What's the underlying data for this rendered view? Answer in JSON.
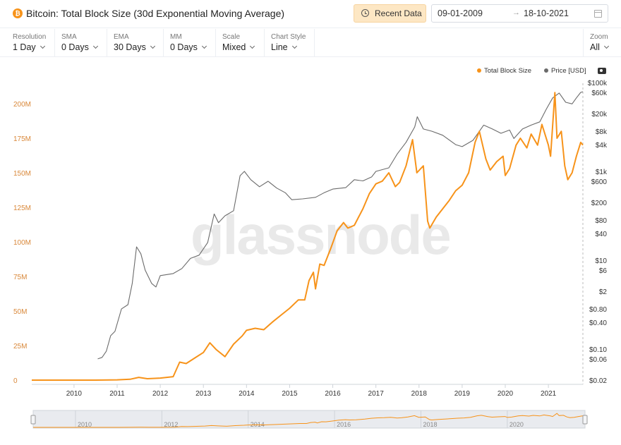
{
  "header": {
    "title": "Bitcoin: Total Block Size (30d Exponential Moving Average)",
    "recent_button": "Recent Data",
    "date_from": "09-01-2009",
    "date_to": "18-10-2021"
  },
  "controls": {
    "resolution": {
      "label": "Resolution",
      "value": "1 Day"
    },
    "sma": {
      "label": "SMA",
      "value": "0 Days"
    },
    "ema": {
      "label": "EMA",
      "value": "30 Days"
    },
    "mm": {
      "label": "MM",
      "value": "0 Days"
    },
    "scale": {
      "label": "Scale",
      "value": "Mixed"
    },
    "chart_style": {
      "label": "Chart Style",
      "value": "Line"
    },
    "zoom": {
      "label": "Zoom",
      "value": "All"
    }
  },
  "legend": {
    "block_size": "Total Block Size",
    "price": "Price [USD]"
  },
  "watermark": "glassnode",
  "chart_data": {
    "type": "line",
    "x_ticks": [
      "2010",
      "2011",
      "2012",
      "2013",
      "2014",
      "2015",
      "2016",
      "2017",
      "2018",
      "2019",
      "2020",
      "2021"
    ],
    "left_axis": {
      "ticks": [
        "0",
        "25M",
        "50M",
        "75M",
        "100M",
        "125M",
        "150M",
        "175M",
        "200M"
      ],
      "range": [
        0,
        200000000
      ]
    },
    "right_axis": {
      "scale": "log",
      "ticks": [
        "$0.02",
        "$0.06",
        "$0.10",
        "$0.40",
        "$0.80",
        "$2",
        "$6",
        "$10",
        "$40",
        "$80",
        "$200",
        "$600",
        "$1k",
        "$4k",
        "$8k",
        "$20k",
        "$60k",
        "$100k"
      ]
    },
    "navigator_ticks": [
      "2010",
      "2012",
      "2014",
      "2016",
      "2018",
      "2020"
    ],
    "colors": {
      "block_size": "#f7931a",
      "price": "#6b6b6b",
      "axis_left": "#d9883a"
    },
    "series": [
      {
        "name": "Total Block Size",
        "axis": "left",
        "points": [
          [
            2009.02,
            0.0
          ],
          [
            2010.0,
            0.0
          ],
          [
            2010.5,
            0.0
          ],
          [
            2011.0,
            0.2
          ],
          [
            2011.3,
            0.6
          ],
          [
            2011.5,
            2.0
          ],
          [
            2011.7,
            1.0
          ],
          [
            2012.0,
            1.5
          ],
          [
            2012.3,
            2.5
          ],
          [
            2012.45,
            13.0
          ],
          [
            2012.6,
            12.0
          ],
          [
            2012.8,
            16.0
          ],
          [
            2013.0,
            20.0
          ],
          [
            2013.15,
            27.0
          ],
          [
            2013.3,
            22.0
          ],
          [
            2013.5,
            17.0
          ],
          [
            2013.7,
            26.0
          ],
          [
            2013.9,
            32.0
          ],
          [
            2014.0,
            36.0
          ],
          [
            2014.2,
            37.5
          ],
          [
            2014.4,
            36.5
          ],
          [
            2014.6,
            42.0
          ],
          [
            2014.8,
            47.0
          ],
          [
            2015.0,
            52.0
          ],
          [
            2015.2,
            58.0
          ],
          [
            2015.35,
            58.0
          ],
          [
            2015.45,
            72.0
          ],
          [
            2015.55,
            78.0
          ],
          [
            2015.6,
            66.0
          ],
          [
            2015.7,
            84.0
          ],
          [
            2015.8,
            83.0
          ],
          [
            2015.95,
            95.0
          ],
          [
            2016.1,
            108.0
          ],
          [
            2016.25,
            114.0
          ],
          [
            2016.35,
            110.0
          ],
          [
            2016.5,
            112.0
          ],
          [
            2016.7,
            124.0
          ],
          [
            2016.85,
            135.0
          ],
          [
            2017.0,
            142.0
          ],
          [
            2017.15,
            144.0
          ],
          [
            2017.3,
            150.0
          ],
          [
            2017.45,
            140.0
          ],
          [
            2017.55,
            143.0
          ],
          [
            2017.7,
            155.0
          ],
          [
            2017.85,
            174.0
          ],
          [
            2017.95,
            150.0
          ],
          [
            2018.1,
            155.0
          ],
          [
            2018.2,
            115.0
          ],
          [
            2018.25,
            110.0
          ],
          [
            2018.4,
            118.0
          ],
          [
            2018.55,
            124.0
          ],
          [
            2018.7,
            130.0
          ],
          [
            2018.85,
            137.0
          ],
          [
            2019.0,
            141.0
          ],
          [
            2019.15,
            150.0
          ],
          [
            2019.3,
            172.0
          ],
          [
            2019.4,
            180.0
          ],
          [
            2019.55,
            160.0
          ],
          [
            2019.65,
            152.0
          ],
          [
            2019.8,
            158.0
          ],
          [
            2019.95,
            162.0
          ],
          [
            2020.0,
            148.0
          ],
          [
            2020.1,
            153.0
          ],
          [
            2020.25,
            170.0
          ],
          [
            2020.35,
            175.0
          ],
          [
            2020.5,
            168.0
          ],
          [
            2020.6,
            178.0
          ],
          [
            2020.75,
            170.0
          ],
          [
            2020.85,
            185.0
          ],
          [
            2020.9,
            180.0
          ],
          [
            2021.0,
            170.0
          ],
          [
            2021.05,
            162.0
          ],
          [
            2021.15,
            208.0
          ],
          [
            2021.2,
            175.0
          ],
          [
            2021.3,
            180.0
          ],
          [
            2021.38,
            155.0
          ],
          [
            2021.45,
            145.0
          ],
          [
            2021.55,
            150.0
          ],
          [
            2021.65,
            162.0
          ],
          [
            2021.75,
            172.0
          ],
          [
            2021.8,
            170.0
          ]
        ]
      },
      {
        "name": "Price [USD]",
        "axis": "right",
        "points": [
          [
            2010.55,
            0.06
          ],
          [
            2010.65,
            0.065
          ],
          [
            2010.75,
            0.09
          ],
          [
            2010.85,
            0.2
          ],
          [
            2010.95,
            0.25
          ],
          [
            2011.1,
            0.8
          ],
          [
            2011.25,
            1.0
          ],
          [
            2011.35,
            3.0
          ],
          [
            2011.45,
            20.0
          ],
          [
            2011.55,
            14.0
          ],
          [
            2011.65,
            6.0
          ],
          [
            2011.8,
            3.0
          ],
          [
            2011.9,
            2.5
          ],
          [
            2012.0,
            4.5
          ],
          [
            2012.3,
            5.0
          ],
          [
            2012.5,
            6.5
          ],
          [
            2012.7,
            11.0
          ],
          [
            2012.9,
            13.0
          ],
          [
            2013.1,
            25.0
          ],
          [
            2013.25,
            110.0
          ],
          [
            2013.35,
            70.0
          ],
          [
            2013.5,
            100.0
          ],
          [
            2013.7,
            130.0
          ],
          [
            2013.85,
            800.0
          ],
          [
            2013.95,
            1000.0
          ],
          [
            2014.1,
            650.0
          ],
          [
            2014.3,
            450.0
          ],
          [
            2014.5,
            600.0
          ],
          [
            2014.7,
            420.0
          ],
          [
            2014.9,
            330.0
          ],
          [
            2015.05,
            230.0
          ],
          [
            2015.3,
            240.0
          ],
          [
            2015.6,
            260.0
          ],
          [
            2015.8,
            330.0
          ],
          [
            2016.0,
            400.0
          ],
          [
            2016.3,
            430.0
          ],
          [
            2016.5,
            650.0
          ],
          [
            2016.7,
            610.0
          ],
          [
            2016.9,
            750.0
          ],
          [
            2017.0,
            1000.0
          ],
          [
            2017.3,
            1200.0
          ],
          [
            2017.5,
            2500.0
          ],
          [
            2017.7,
            4500.0
          ],
          [
            2017.9,
            10000.0
          ],
          [
            2017.96,
            17000.0
          ],
          [
            2018.1,
            9000.0
          ],
          [
            2018.3,
            8000.0
          ],
          [
            2018.55,
            6500.0
          ],
          [
            2018.85,
            4000.0
          ],
          [
            2019.0,
            3600.0
          ],
          [
            2019.25,
            5000.0
          ],
          [
            2019.5,
            11000.0
          ],
          [
            2019.7,
            9000.0
          ],
          [
            2019.9,
            7200.0
          ],
          [
            2020.1,
            8500.0
          ],
          [
            2020.2,
            5500.0
          ],
          [
            2020.4,
            9000.0
          ],
          [
            2020.6,
            11000.0
          ],
          [
            2020.8,
            13000.0
          ],
          [
            2020.95,
            25000.0
          ],
          [
            2021.1,
            45000.0
          ],
          [
            2021.25,
            58000.0
          ],
          [
            2021.4,
            36000.0
          ],
          [
            2021.55,
            33000.0
          ],
          [
            2021.65,
            45000.0
          ],
          [
            2021.75,
            60000.0
          ],
          [
            2021.8,
            62000.0
          ]
        ]
      }
    ]
  }
}
